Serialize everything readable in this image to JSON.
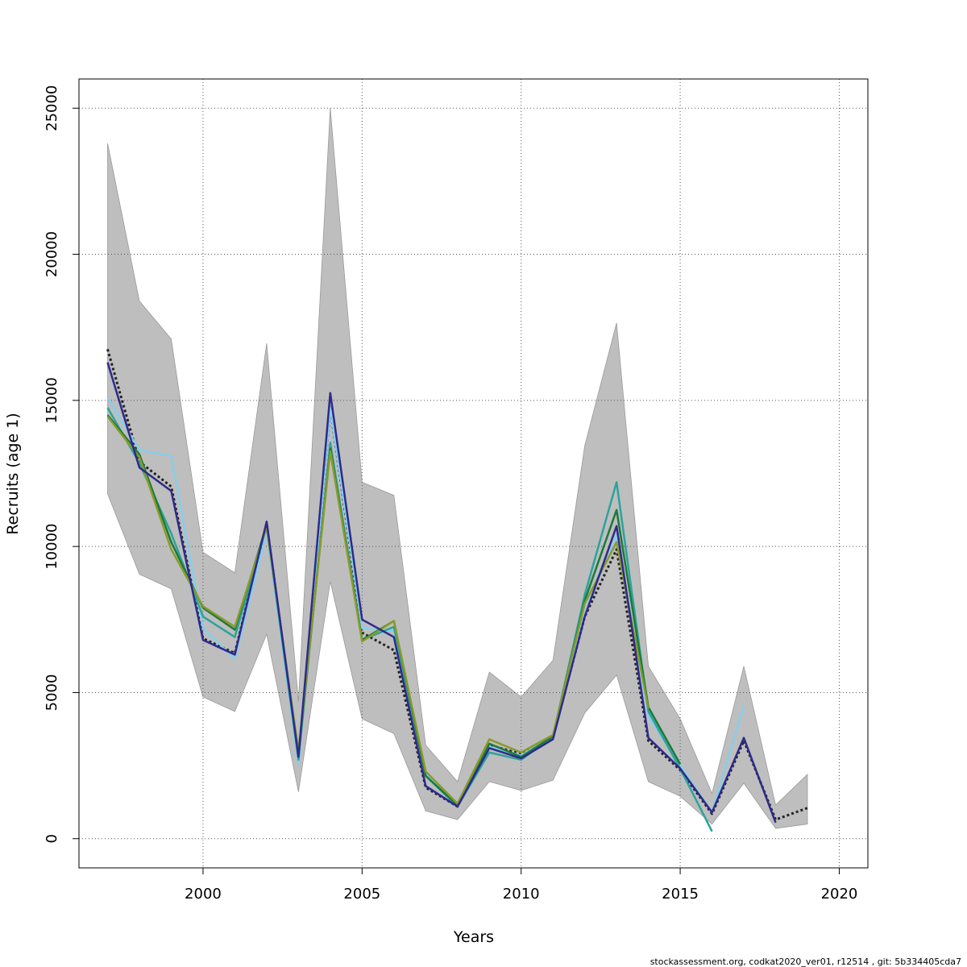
{
  "chart_data": {
    "type": "line",
    "xlabel": "Years",
    "ylabel": "Recruits (age 1)",
    "footer": "stockassessment.org, codkat2020_ver01, r12514 , git: 5b334405cda7",
    "xlim": [
      1996.1,
      2020.9
    ],
    "ylim": [
      -1000,
      26000
    ],
    "xticks": [
      "2000",
      "2005",
      "2010",
      "2015",
      "2020"
    ],
    "xtick_values": [
      2000,
      2005,
      2010,
      2015,
      2020
    ],
    "yticks": [
      "0",
      "5000",
      "10000",
      "15000",
      "20000",
      "25000"
    ],
    "ytick_values": [
      0,
      5000,
      10000,
      15000,
      20000,
      25000
    ],
    "grid": true,
    "confidence_band": {
      "color": "#bebebe",
      "x": [
        1997,
        1998,
        1999,
        2000,
        2001,
        2002,
        2003,
        2004,
        2005,
        2006,
        2007,
        2008,
        2009,
        2010,
        2011,
        2012,
        2013,
        2014,
        2015,
        2016,
        2017,
        2018,
        2019
      ],
      "lower": [
        11800,
        9050,
        8550,
        4850,
        4350,
        7000,
        1600,
        8800,
        4100,
        3600,
        950,
        650,
        1950,
        1650,
        2000,
        4300,
        5600,
        1950,
        1450,
        500,
        1900,
        350,
        500
      ],
      "upper": [
        23800,
        18400,
        17100,
        9800,
        9100,
        16950,
        4700,
        25000,
        12200,
        11750,
        3200,
        1950,
        5700,
        4850,
        6100,
        13450,
        17650,
        5900,
        4100,
        1550,
        5900,
        1150,
        2200
      ]
    },
    "series": [
      {
        "color": "#222222",
        "dashed": true,
        "x": [
          1997,
          1998,
          1999,
          2000,
          2001,
          2002,
          2003,
          2004,
          2005,
          2006,
          2007,
          2008,
          2009,
          2010,
          2011,
          2012,
          2013,
          2014,
          2015,
          2016,
          2017,
          2018,
          2019
        ],
        "values": [
          16750,
          12900,
          12050,
          6850,
          6350,
          10800,
          2700,
          14750,
          7050,
          6450,
          1750,
          1100,
          3200,
          2900,
          3450,
          7600,
          9900,
          3350,
          2350,
          850,
          3350,
          650,
          1050
        ]
      },
      {
        "color": "#87ceeb",
        "dashed": false,
        "x": [
          1997,
          1998,
          1999,
          2000,
          2001,
          2002,
          2003,
          2004,
          2005,
          2006,
          2007,
          2008,
          2009,
          2010,
          2011,
          2012,
          2013,
          2014,
          2015,
          2016,
          2017
        ],
        "values": [
          15100,
          13300,
          13100,
          7200,
          6150,
          10500,
          2550,
          14750,
          7200,
          7100,
          2250,
          1150,
          3150,
          2850,
          3500,
          7950,
          10400,
          4200,
          2500,
          900,
          4550
        ]
      },
      {
        "color": "#2ca39b",
        "dashed": false,
        "x": [
          1997,
          1998,
          1999,
          2000,
          2001,
          2002,
          2003,
          2004,
          2005,
          2006,
          2007,
          2008,
          2009,
          2010,
          2011,
          2012,
          2013,
          2014,
          2015,
          2016
        ],
        "values": [
          14750,
          12850,
          10450,
          7600,
          6900,
          10700,
          2700,
          13550,
          6800,
          7250,
          2150,
          1100,
          2950,
          2700,
          3500,
          8350,
          12200,
          4350,
          2400,
          250
        ]
      },
      {
        "color": "#1b7a3a",
        "dashed": false,
        "x": [
          1997,
          1998,
          1999,
          2000,
          2001,
          2002,
          2003,
          2004,
          2005,
          2006,
          2007,
          2008,
          2009,
          2010,
          2011,
          2012,
          2013,
          2014,
          2015
        ],
        "values": [
          14500,
          13150,
          10150,
          7900,
          7150,
          10750,
          2900,
          13350,
          6800,
          7450,
          2150,
          1150,
          3250,
          2800,
          3500,
          8150,
          11250,
          4500,
          2550
        ]
      },
      {
        "color": "#8a9a2a",
        "dashed": false,
        "x": [
          1997,
          1998,
          1999,
          2000,
          2001,
          2002,
          2003,
          2004,
          2005,
          2006,
          2007,
          2008,
          2009,
          2010,
          2011,
          2012,
          2013,
          2014
        ],
        "values": [
          14450,
          13050,
          9900,
          7950,
          7250,
          10650,
          3000,
          13250,
          6750,
          7450,
          2300,
          1200,
          3400,
          2950,
          3550,
          8050,
          10150,
          4450
        ]
      },
      {
        "color": "#2e2a8c",
        "dashed": false,
        "x": [
          1997,
          1998,
          1999,
          2000,
          2001,
          2002,
          2003,
          2004,
          2005,
          2006,
          2007,
          2008,
          2009,
          2010,
          2011,
          2012,
          2013,
          2014,
          2015,
          2016,
          2017,
          2018
        ],
        "values": [
          16300,
          12700,
          11900,
          6800,
          6300,
          10850,
          2800,
          15250,
          7500,
          6900,
          1800,
          1100,
          3100,
          2750,
          3400,
          7600,
          10700,
          3450,
          2400,
          900,
          3450,
          550
        ]
      }
    ]
  }
}
